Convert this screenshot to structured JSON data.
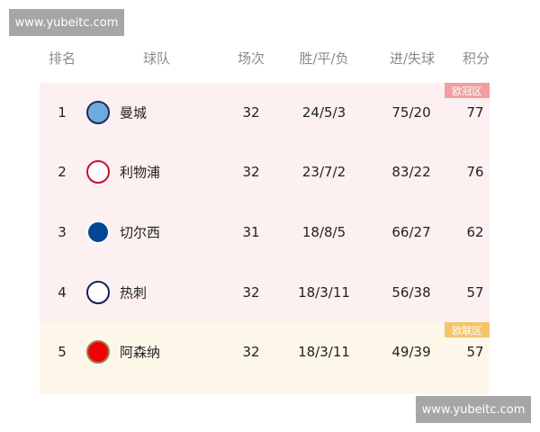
{
  "watermark": "www.yubeitc.com",
  "headers": [
    "排名",
    "球队",
    "场次",
    "胜/平/负",
    "进/失球",
    "积分"
  ],
  "zones": {
    "ucl": {
      "label": "欧冠区",
      "bg": "#fdf0f0",
      "badge": "#f0a0a0"
    },
    "uel": {
      "label": "欧联区",
      "bg": "#fdf7ea",
      "badge": "#f3c56a"
    }
  },
  "rows": [
    {
      "rank": "1",
      "team": "曼城",
      "logo": "man-city-crest-icon",
      "played": "32",
      "wdl": "24/5/3",
      "goals": "75/20",
      "points": "77"
    },
    {
      "rank": "2",
      "team": "利物浦",
      "logo": "liverpool-crest-icon",
      "played": "32",
      "wdl": "23/7/2",
      "goals": "83/22",
      "points": "76"
    },
    {
      "rank": "3",
      "team": "切尔西",
      "logo": "chelsea-crest-icon",
      "played": "31",
      "wdl": "18/8/5",
      "goals": "66/27",
      "points": "62"
    },
    {
      "rank": "4",
      "team": "热刺",
      "logo": "tottenham-crest-icon",
      "played": "32",
      "wdl": "18/3/11",
      "goals": "56/38",
      "points": "57"
    },
    {
      "rank": "5",
      "team": "阿森纳",
      "logo": "arsenal-crest-icon",
      "played": "32",
      "wdl": "18/3/11",
      "goals": "49/39",
      "points": "57"
    }
  ]
}
